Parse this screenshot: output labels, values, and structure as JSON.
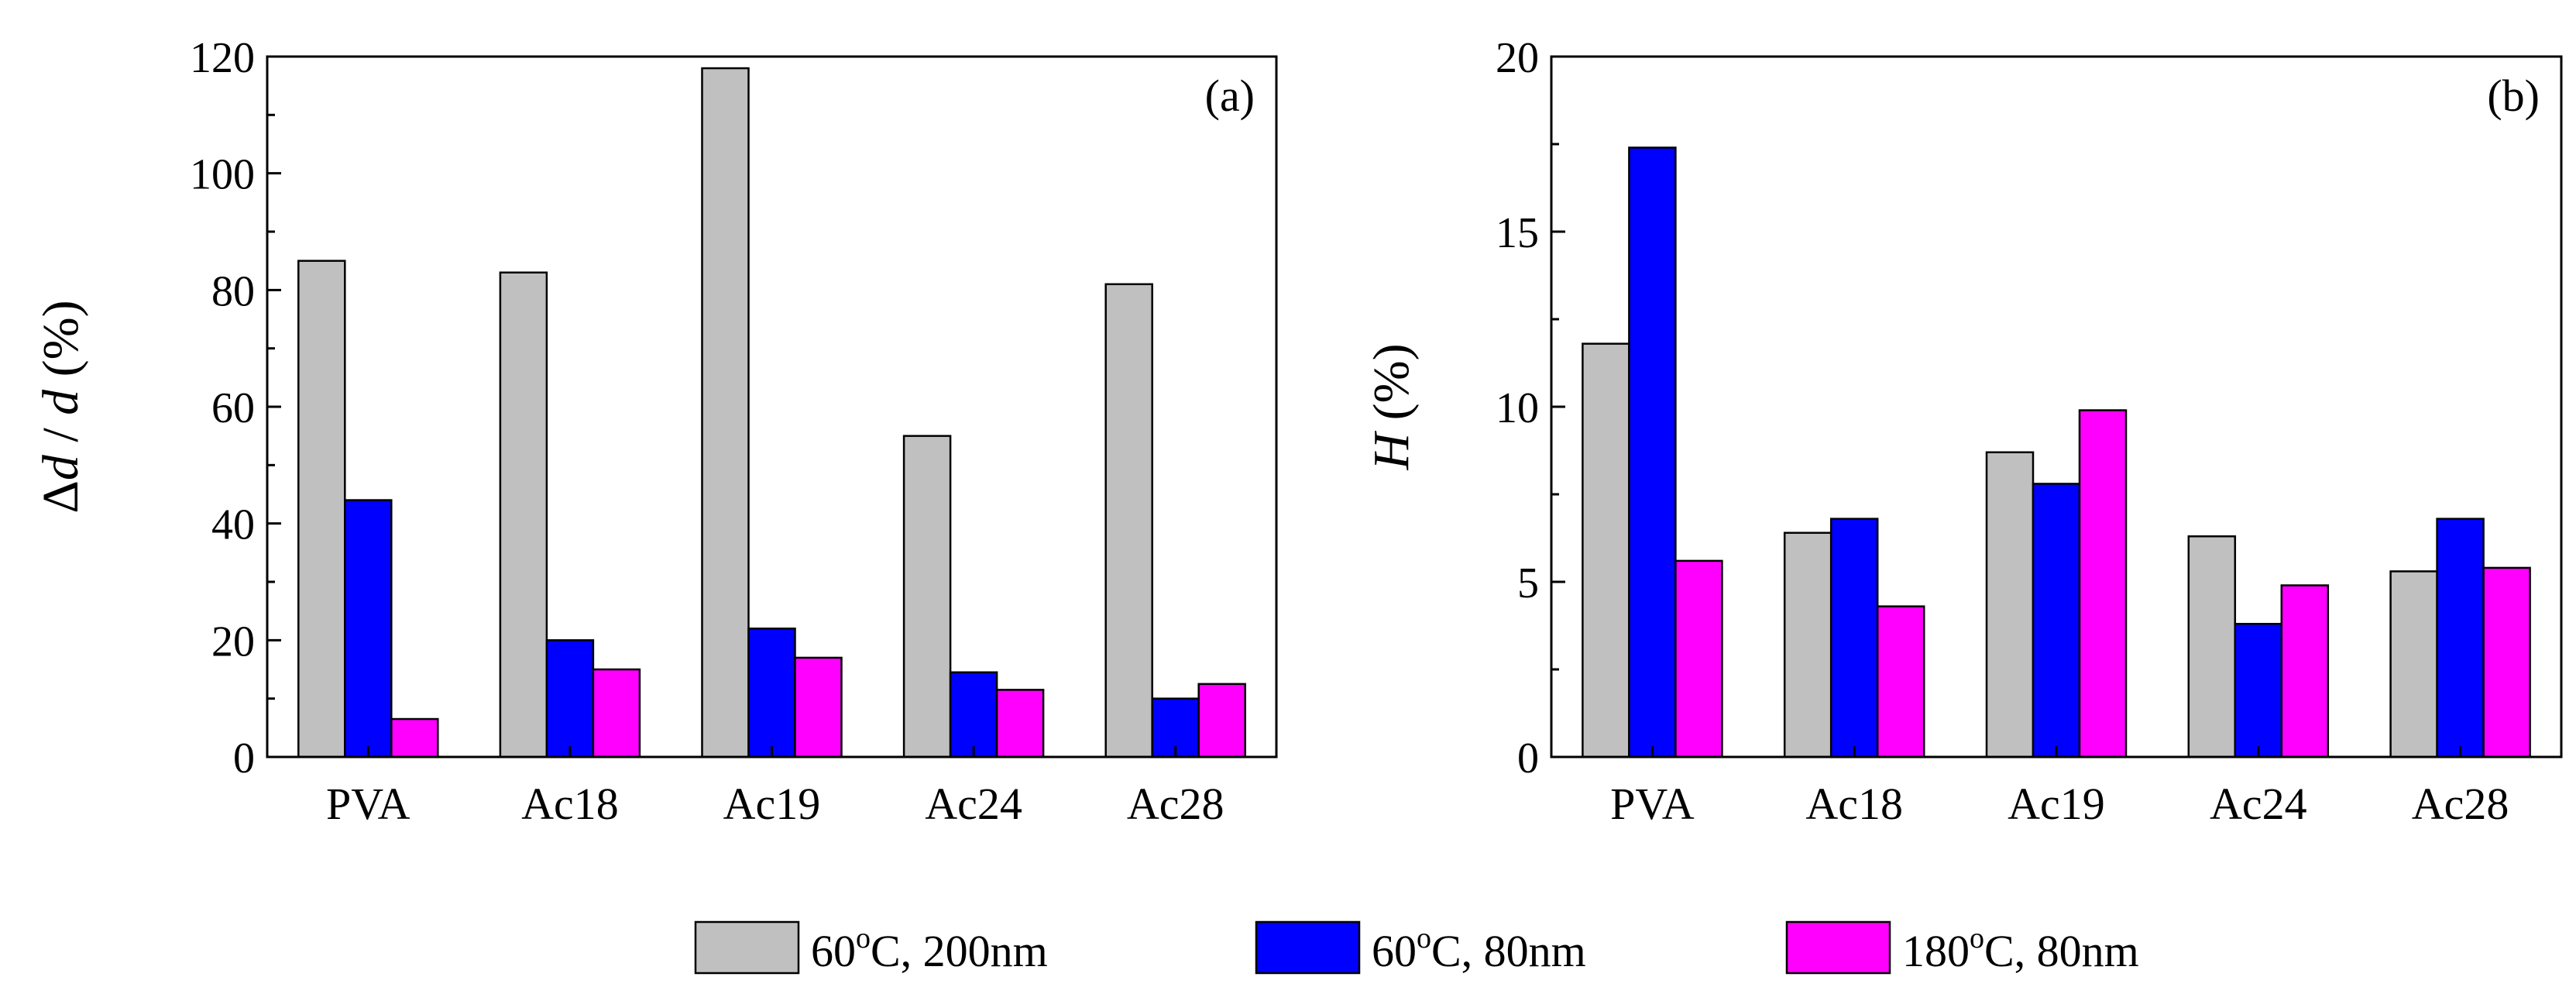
{
  "legend": {
    "entries": [
      {
        "key": "s1",
        "pre": "60",
        "sup": "o",
        "post": "C, 200nm",
        "color": "#c0c0c0"
      },
      {
        "key": "s2",
        "pre": "60",
        "sup": "o",
        "post": "C, 80nm",
        "color": "#0000ff"
      },
      {
        "key": "s3",
        "pre": "180",
        "sup": "o",
        "post": "C, 80nm",
        "color": "#ff00ff"
      }
    ]
  },
  "chart_data": [
    {
      "type": "bar",
      "panel": "(a)",
      "ylabel_parts": [
        "Δ",
        "d",
        " / ",
        "d",
        " (%)"
      ],
      "xlabel": "",
      "categories": [
        "PVA",
        "Ac18",
        "Ac19",
        "Ac24",
        "Ac28"
      ],
      "ylim": [
        0,
        120
      ],
      "major_ticks": [
        0,
        20,
        40,
        60,
        80,
        100,
        120
      ],
      "minor_step": 10,
      "series": [
        {
          "name": "60oC, 200nm",
          "color": "#c0c0c0",
          "values": [
            85,
            83,
            118,
            55,
            81
          ]
        },
        {
          "name": "60oC, 80nm",
          "color": "#0000ff",
          "values": [
            44,
            20,
            22,
            14.5,
            10
          ]
        },
        {
          "name": "180oC, 80nm",
          "color": "#ff00ff",
          "values": [
            6.5,
            15,
            17,
            11.5,
            12.5
          ]
        }
      ]
    },
    {
      "type": "bar",
      "panel": "(b)",
      "ylabel_parts": [
        "H",
        " (%)"
      ],
      "xlabel": "",
      "categories": [
        "PVA",
        "Ac18",
        "Ac19",
        "Ac24",
        "Ac28"
      ],
      "ylim": [
        0,
        20
      ],
      "major_ticks": [
        0,
        5,
        10,
        15,
        20
      ],
      "minor_step": 2.5,
      "series": [
        {
          "name": "60oC, 200nm",
          "color": "#c0c0c0",
          "values": [
            11.8,
            6.4,
            8.7,
            6.3,
            5.3
          ]
        },
        {
          "name": "60oC, 80nm",
          "color": "#0000ff",
          "values": [
            17.4,
            6.8,
            7.8,
            3.8,
            6.8
          ]
        },
        {
          "name": "180oC, 80nm",
          "color": "#ff00ff",
          "values": [
            5.6,
            4.3,
            9.9,
            4.9,
            5.4
          ]
        }
      ]
    }
  ]
}
